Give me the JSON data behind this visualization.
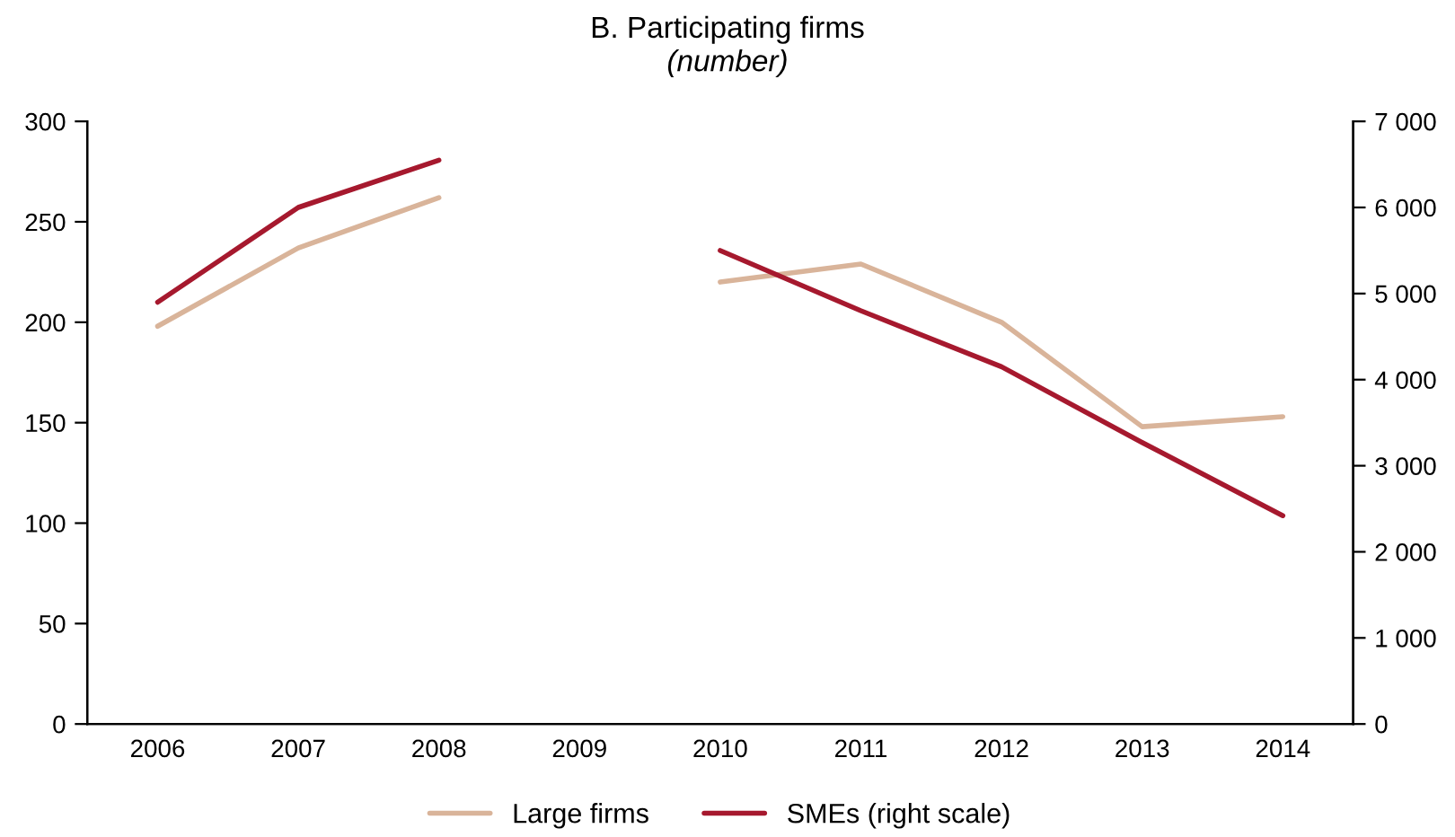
{
  "chart_data": {
    "type": "line",
    "title": "B. Participating firms",
    "subtitle": "(number)",
    "categories": [
      "2006",
      "2007",
      "2008",
      "2009",
      "2010",
      "2011",
      "2012",
      "2013",
      "2014"
    ],
    "series": [
      {
        "name": "Large firms",
        "color": "#d9b49a",
        "values": [
          198,
          237,
          262,
          null,
          220,
          229,
          200,
          148,
          153
        ]
      },
      {
        "name": "SMEs (right scale)",
        "color": "#a6192e",
        "axis": "y2",
        "values": [
          4900,
          6000,
          6550,
          null,
          5500,
          4800,
          4150,
          3270,
          2420
        ]
      }
    ],
    "ylim": [
      0,
      300
    ],
    "yticks": [
      0,
      50,
      100,
      150,
      200,
      250,
      300
    ],
    "y2lim": [
      0,
      7000
    ],
    "y2ticks": [
      {
        "value": 0,
        "label": "0"
      },
      {
        "value": 1000,
        "label": "1 000"
      },
      {
        "value": 2000,
        "label": "2 000"
      },
      {
        "value": 3000,
        "label": "3 000"
      },
      {
        "value": 4000,
        "label": "4 000"
      },
      {
        "value": 5000,
        "label": "5 000"
      },
      {
        "value": 6000,
        "label": "6 000"
      },
      {
        "value": 7000,
        "label": "7 000"
      }
    ],
    "legend": "bottom",
    "grid": false,
    "marker": "none",
    "line_style": "solid"
  }
}
